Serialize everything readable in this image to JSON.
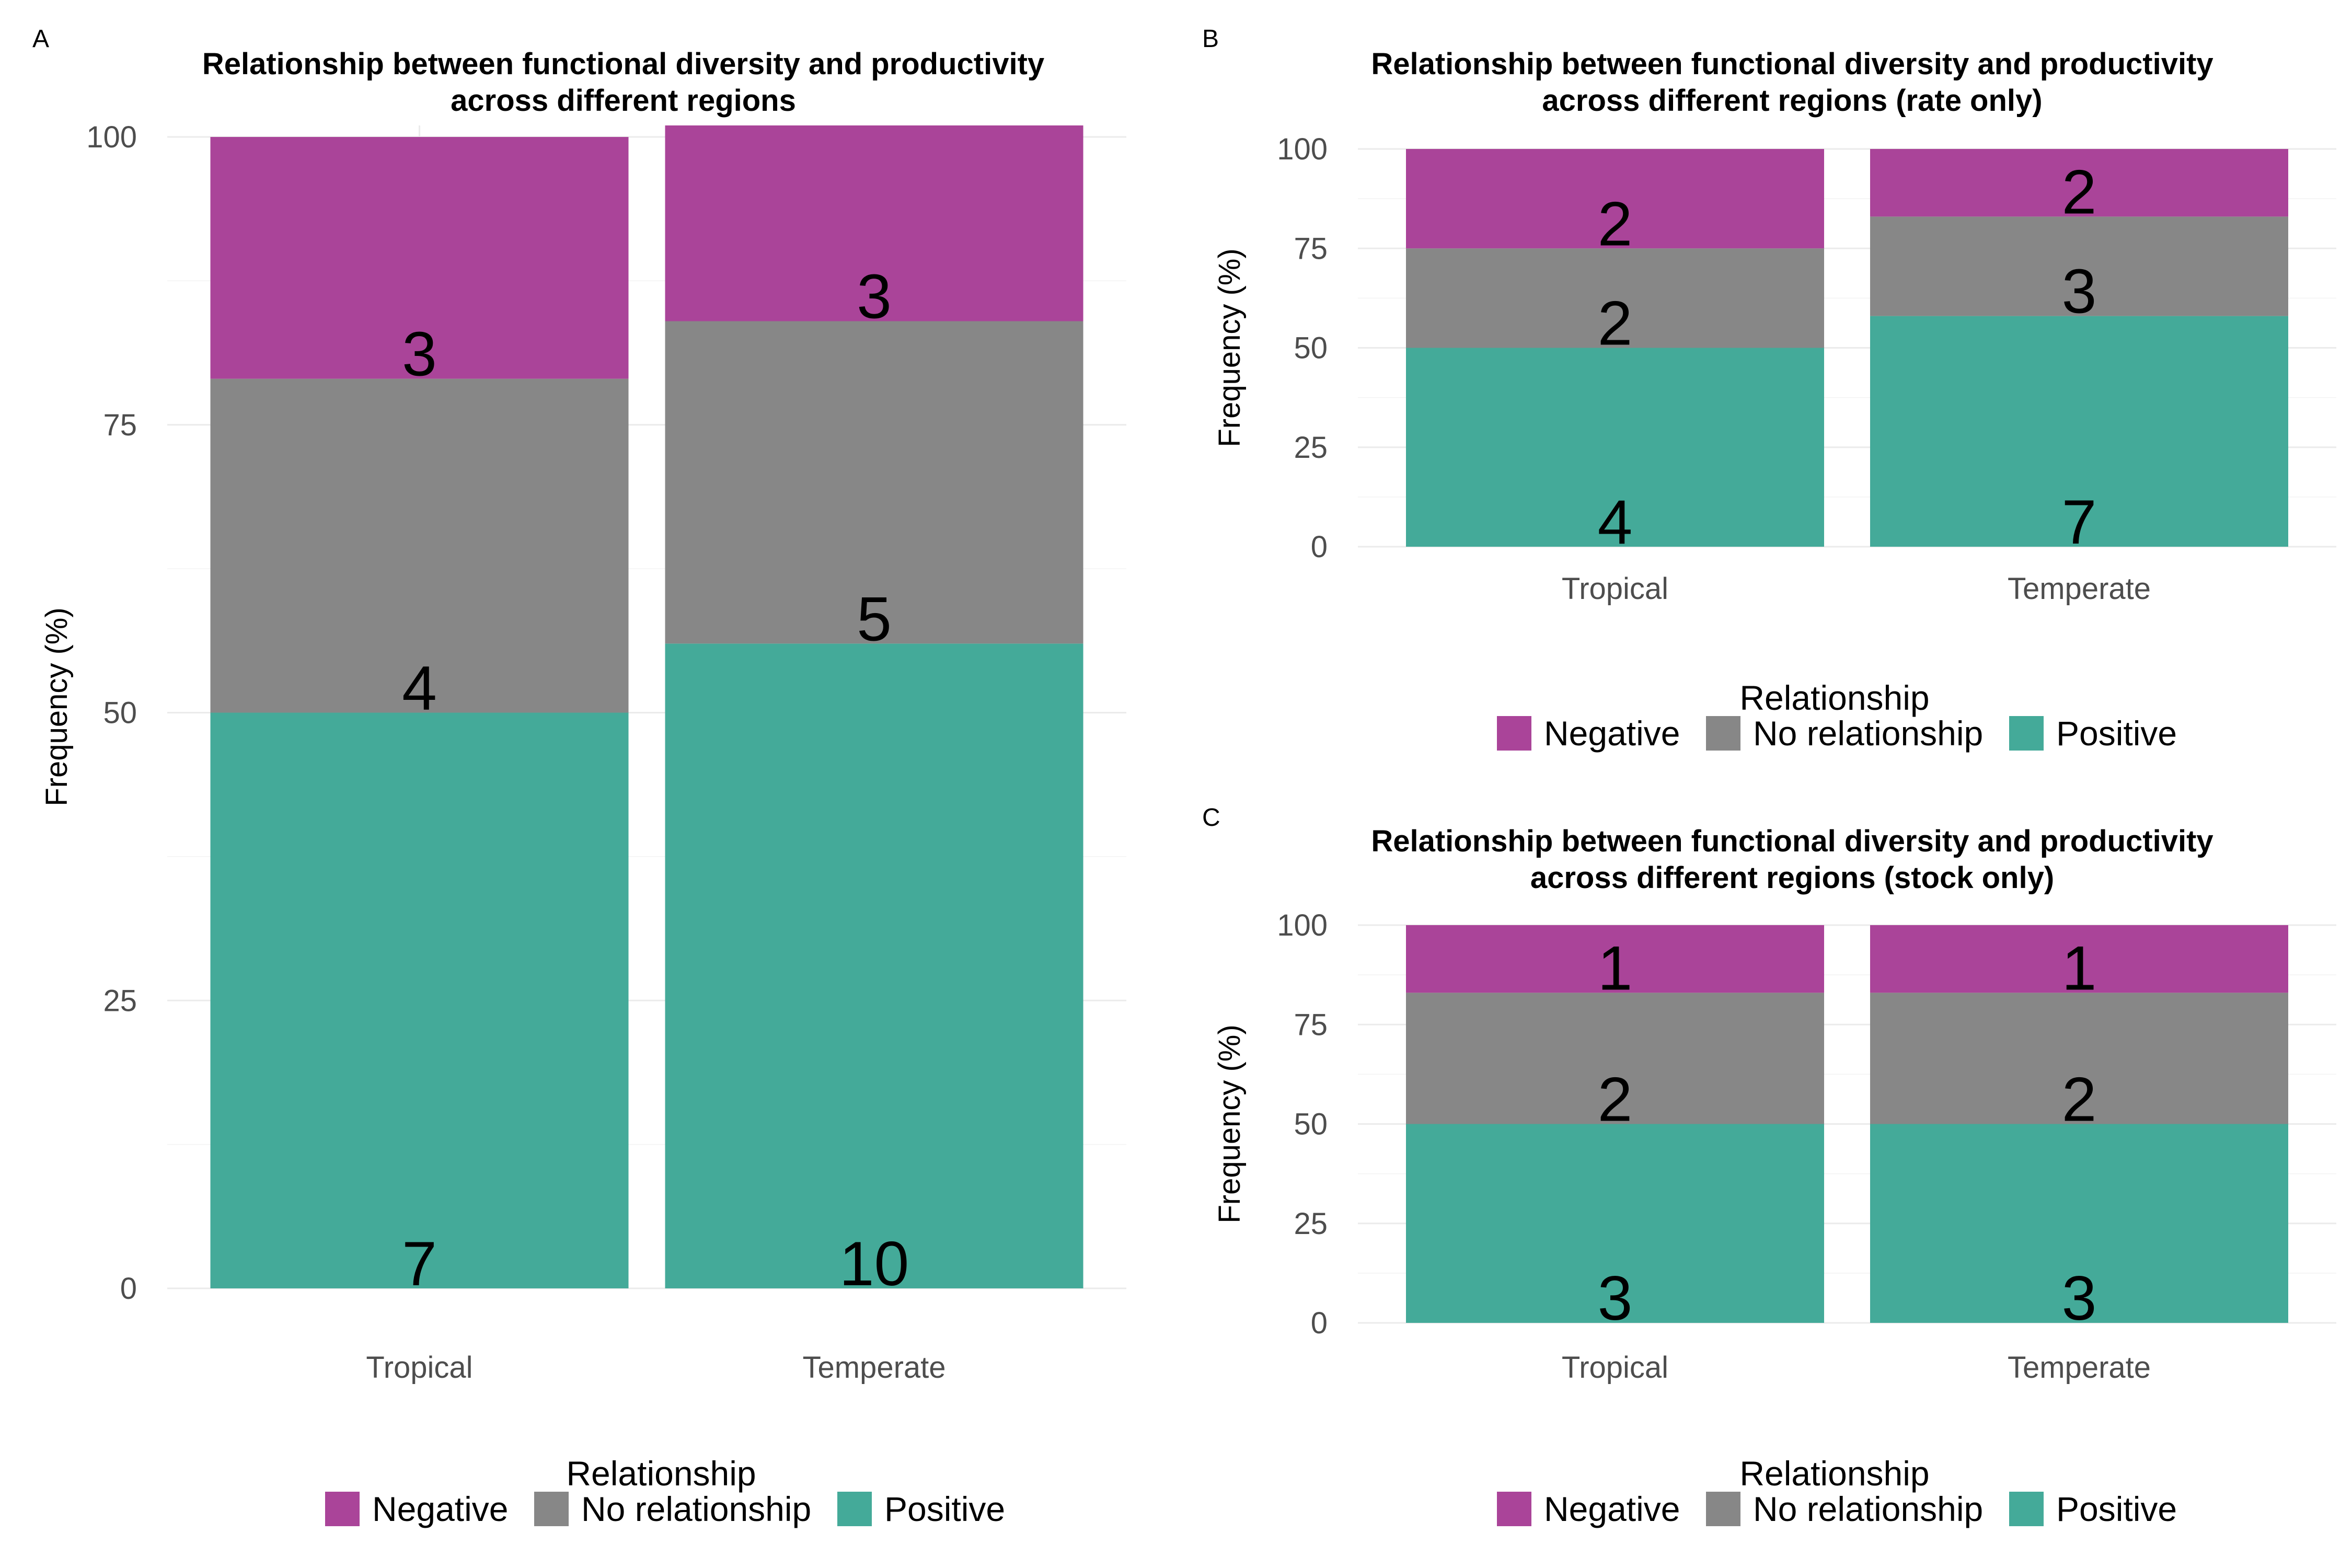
{
  "colors": {
    "Negative": "#aa4499",
    "No relationship": "#878787",
    "Positive": "#44aa99"
  },
  "chart_data": [
    {
      "panel": "A",
      "type": "bar",
      "stacked": true,
      "title": "Relationship between functional diversity and productivity across different regions",
      "title_lines": [
        "Relationship between functional diversity and productivity",
        "across different regions"
      ],
      "xlabel": "",
      "ylabel": "Frequency (%)",
      "ylim": [
        0,
        101
      ],
      "yticks": [
        0,
        25,
        50,
        75,
        100
      ],
      "grid": true,
      "categories": [
        "Tropical",
        "Temperate"
      ],
      "series": [
        {
          "name": "Positive",
          "values": [
            50,
            56
          ],
          "counts": [
            7,
            10
          ]
        },
        {
          "name": "No relationship",
          "values": [
            29,
            28
          ],
          "counts": [
            4,
            5
          ]
        },
        {
          "name": "Negative",
          "values": [
            21,
            17
          ],
          "counts": [
            3,
            3
          ]
        }
      ],
      "legend": {
        "title": "Relationship",
        "position": "bottom",
        "items": [
          "Negative",
          "No relationship",
          "Positive"
        ]
      }
    },
    {
      "panel": "B",
      "type": "bar",
      "stacked": true,
      "title": "Relationship between functional diversity and productivity across different regions (rate only)",
      "title_lines": [
        "Relationship between functional diversity and productivity",
        "across different regions (rate only)"
      ],
      "xlabel": "",
      "ylabel": "Frequency (%)",
      "ylim": [
        0,
        100
      ],
      "yticks": [
        0,
        25,
        50,
        75,
        100
      ],
      "grid": true,
      "categories": [
        "Tropical",
        "Temperate"
      ],
      "series": [
        {
          "name": "Positive",
          "values": [
            50,
            58
          ],
          "counts": [
            4,
            7
          ]
        },
        {
          "name": "No relationship",
          "values": [
            25,
            25
          ],
          "counts": [
            2,
            3
          ]
        },
        {
          "name": "Negative",
          "values": [
            25,
            17
          ],
          "counts": [
            2,
            2
          ]
        }
      ],
      "legend": {
        "title": "Relationship",
        "position": "bottom",
        "items": [
          "Negative",
          "No relationship",
          "Positive"
        ]
      }
    },
    {
      "panel": "C",
      "type": "bar",
      "stacked": true,
      "title": "Relationship between functional diversity and productivity across different regions (stock only)",
      "title_lines": [
        "Relationship between functional diversity and productivity",
        "across different regions (stock only)"
      ],
      "xlabel": "",
      "ylabel": "Frequency (%)",
      "ylim": [
        0,
        100
      ],
      "yticks": [
        0,
        25,
        50,
        75,
        100
      ],
      "grid": true,
      "categories": [
        "Tropical",
        "Temperate"
      ],
      "series": [
        {
          "name": "Positive",
          "values": [
            50,
            50
          ],
          "counts": [
            3,
            3
          ]
        },
        {
          "name": "No relationship",
          "values": [
            33,
            33
          ],
          "counts": [
            2,
            2
          ]
        },
        {
          "name": "Negative",
          "values": [
            17,
            17
          ],
          "counts": [
            1,
            1
          ]
        }
      ],
      "legend": {
        "title": "Relationship",
        "position": "bottom",
        "items": [
          "Negative",
          "No relationship",
          "Positive"
        ]
      }
    }
  ]
}
